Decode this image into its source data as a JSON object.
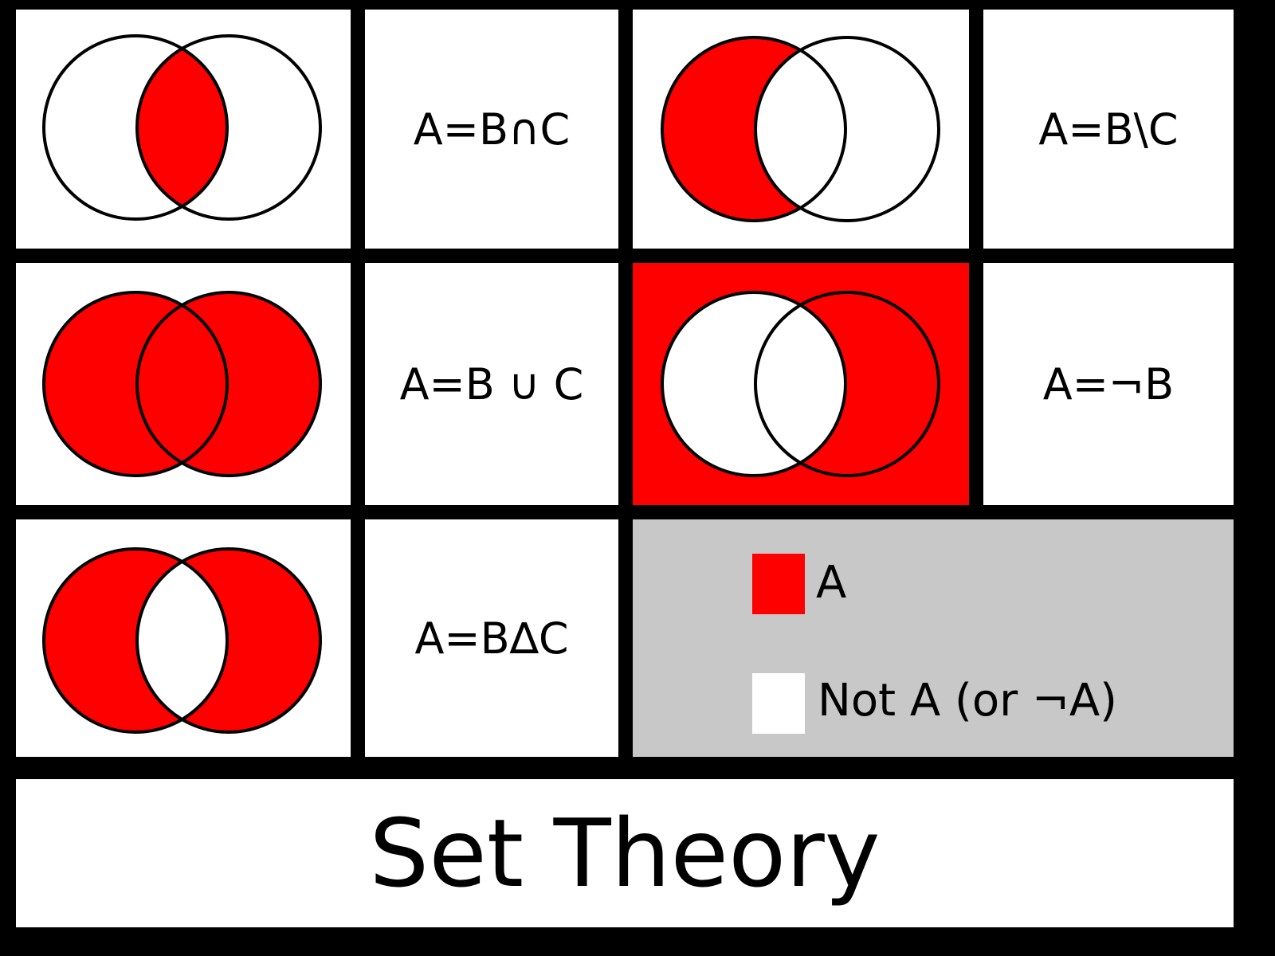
{
  "colors": {
    "set_a": "#ff0000",
    "not_a": "#ffffff",
    "legend_background": "#c8c8c8",
    "grid": "#000000"
  },
  "diagrams": [
    {
      "region_shaded": "intersection",
      "label": "A=B∩C"
    },
    {
      "region_shaded": "difference",
      "label": "A=B\\C"
    },
    {
      "region_shaded": "union",
      "label": "A=B ∪ C"
    },
    {
      "region_shaded": "complement",
      "label": "A=¬B"
    },
    {
      "region_shaded": "symmetric-difference",
      "label": "A=B∆C"
    }
  ],
  "legend": {
    "items": [
      {
        "swatch": "set_a",
        "label": "A"
      },
      {
        "swatch": "not_a",
        "label": "Not A (or ¬A)"
      }
    ]
  },
  "title": "Set Theory"
}
